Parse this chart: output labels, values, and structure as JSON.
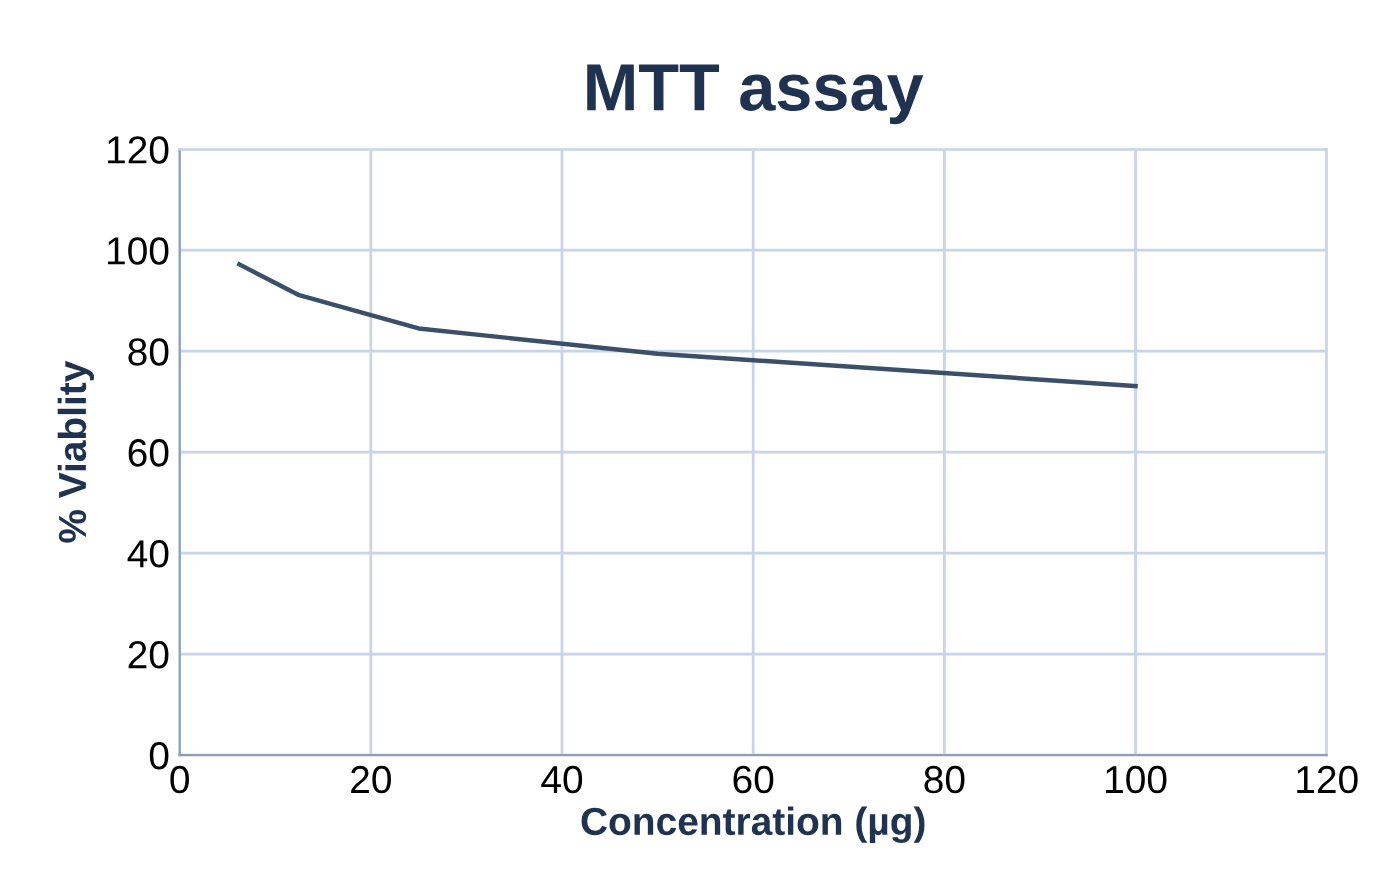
{
  "chart_data": {
    "type": "line",
    "title": "MTT assay",
    "xlabel": "Concentration (µg)",
    "ylabel": "% Viablity",
    "x": [
      6.25,
      12.5,
      25,
      50,
      100
    ],
    "series": [
      {
        "color": "#3b5068",
        "values": [
          97.2,
          91.1,
          84.5,
          79.5,
          73.1
        ]
      }
    ],
    "xlim": [
      0,
      120
    ],
    "xticks": [
      0,
      20,
      40,
      60,
      80,
      100,
      120
    ],
    "ylim": [
      0,
      120
    ],
    "yticks": [
      0,
      20,
      40,
      60,
      80,
      100,
      120
    ],
    "grid": true,
    "marker": "none",
    "line_style": "solid"
  }
}
